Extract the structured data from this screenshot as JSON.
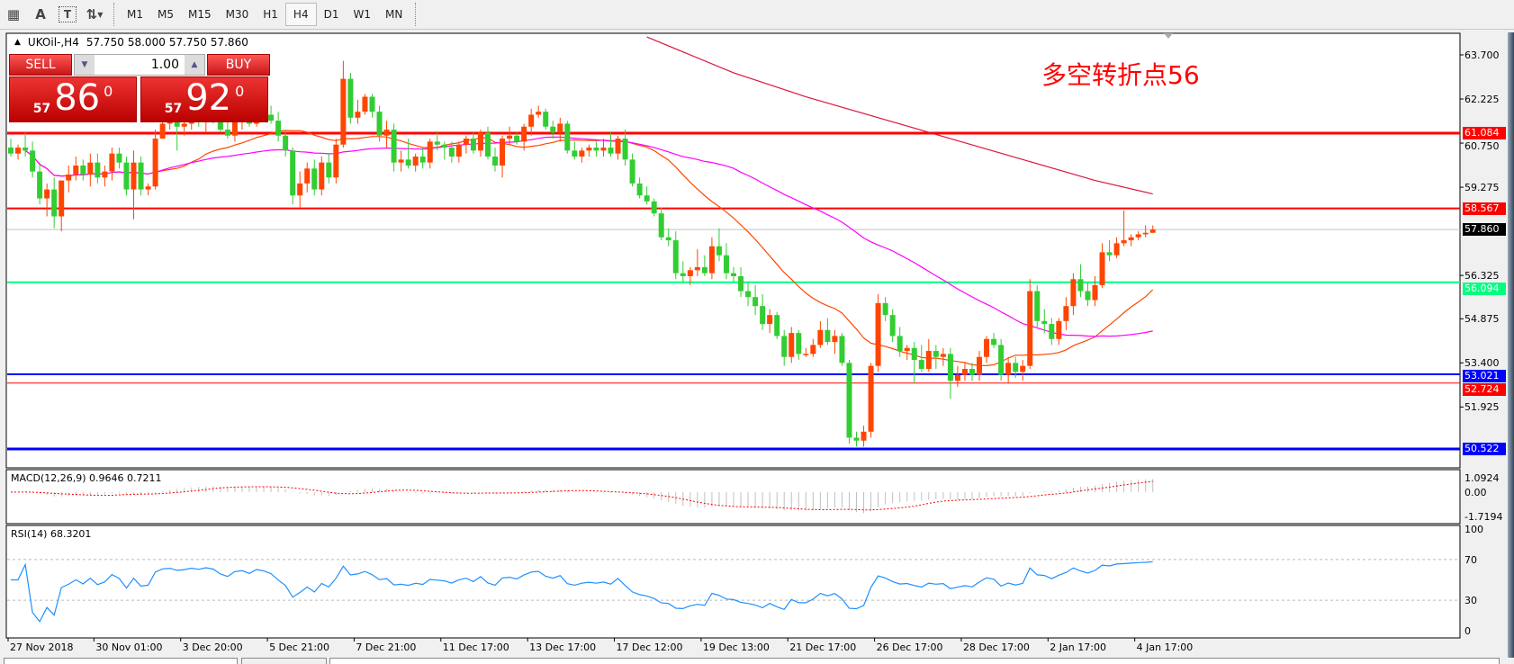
{
  "toolbar": {
    "icons": [
      "grid-periods-icon",
      "text-icon",
      "text-label-icon",
      "arrows-icon"
    ],
    "icon_glyphs": [
      "▦",
      "A",
      "T",
      "⇅"
    ],
    "timeframes": [
      "M1",
      "M5",
      "M15",
      "M30",
      "H1",
      "H4",
      "D1",
      "W1",
      "MN"
    ],
    "active_timeframe": "H4"
  },
  "chart": {
    "symbol_title": "UKOil-,H4",
    "ohlc": [
      "57.750",
      "58.000",
      "57.750",
      "57.860"
    ],
    "annotation": "多空转折点56",
    "colors": {
      "bull": "#FF4500",
      "bear": "#32CD32",
      "ma_fast": "#FF4500",
      "ma_mid": "#FF00FF",
      "ma_slow": "#DC143C",
      "macd_hist": "#C0C0C0",
      "macd_signal": "#FF0000",
      "rsi": "#1E90FF"
    },
    "price_ticks": [
      "63.700",
      "62.225",
      "60.750",
      "59.275",
      "56.325",
      "54.875",
      "53.400",
      "51.925"
    ],
    "price_range": [
      50.522,
      63.7
    ],
    "hlines": [
      {
        "value": "61.084",
        "color": "#FF0000",
        "width": 3
      },
      {
        "value": "58.567",
        "color": "#FF0000",
        "width": 2
      },
      {
        "value": "57.860",
        "color": "#C0C0C0",
        "width": 1,
        "label_bg": "#000000"
      },
      {
        "value": "56.094",
        "color": "#00FF7F",
        "width": 2
      },
      {
        "value": "53.021",
        "color": "#0000FF",
        "width": 2
      },
      {
        "value": "52.724",
        "color": "#FF0000",
        "width": 1
      },
      {
        "value": "50.522",
        "color": "#0000FF",
        "width": 3
      }
    ],
    "ma_slow_points": [
      [
        88,
        64.3
      ],
      [
        100,
        63.1
      ],
      [
        110,
        62.3
      ],
      [
        120,
        61.6
      ],
      [
        130,
        60.9
      ],
      [
        140,
        60.2
      ],
      [
        150,
        59.5
      ],
      [
        158,
        59.05
      ]
    ],
    "time_labels": [
      "27 Nov 2018",
      "30 Nov 01:00",
      "3 Dec 20:00",
      "5 Dec 21:00",
      "7 Dec 21:00",
      "11 Dec 17:00",
      "13 Dec 17:00",
      "17 Dec 12:00",
      "19 Dec 13:00",
      "21 Dec 17:00",
      "26 Dec 17:00",
      "28 Dec 17:00",
      "2 Jan 17:00",
      "4 Jan 17:00"
    ]
  },
  "trade_panel": {
    "sell_label": "SELL",
    "buy_label": "BUY",
    "lot": "1.00",
    "sell_small": "57",
    "sell_big": "86",
    "sell_sup": "0",
    "buy_small": "57",
    "buy_big": "92",
    "buy_sup": "0"
  },
  "macd": {
    "label": "MACD(12,26,9) 0.9646 0.7211",
    "ticks": [
      "1.0924",
      "0.00",
      "-1.7194"
    ]
  },
  "rsi": {
    "label": "RSI(14) 68.3201",
    "ticks": [
      "100",
      "70",
      "30",
      "0"
    ],
    "levels": [
      70,
      30
    ]
  },
  "chart_data": {
    "type": "candlestick",
    "candles": [
      [
        60.6,
        60.9,
        60.3,
        60.4
      ],
      [
        60.4,
        60.7,
        60.2,
        60.6
      ],
      [
        60.6,
        61.1,
        60.3,
        60.5
      ],
      [
        60.5,
        60.8,
        59.6,
        59.8
      ],
      [
        59.8,
        60.1,
        58.7,
        58.9
      ],
      [
        58.9,
        59.4,
        58.3,
        59.2
      ],
      [
        59.2,
        59.6,
        57.9,
        58.3
      ],
      [
        58.3,
        59.5,
        57.8,
        59.5
      ],
      [
        59.5,
        60.0,
        59.1,
        59.7
      ],
      [
        59.7,
        60.3,
        59.5,
        60.0
      ],
      [
        60.0,
        60.2,
        59.5,
        59.7
      ],
      [
        59.7,
        60.4,
        59.3,
        60.1
      ],
      [
        60.1,
        60.4,
        59.4,
        59.6
      ],
      [
        59.6,
        60.0,
        59.3,
        59.8
      ],
      [
        59.8,
        60.6,
        59.5,
        60.4
      ],
      [
        60.4,
        60.6,
        59.9,
        60.1
      ],
      [
        60.1,
        60.3,
        59.0,
        59.2
      ],
      [
        59.2,
        60.5,
        58.2,
        60.1
      ],
      [
        60.1,
        60.3,
        59.0,
        59.2
      ],
      [
        59.2,
        59.4,
        59.0,
        59.3
      ],
      [
        59.3,
        61.2,
        59.2,
        60.9
      ],
      [
        60.9,
        61.6,
        60.9,
        61.4
      ],
      [
        61.4,
        61.7,
        61.2,
        61.5
      ],
      [
        61.5,
        61.8,
        60.5,
        61.3
      ],
      [
        61.3,
        61.6,
        61.0,
        61.4
      ],
      [
        61.4,
        61.9,
        61.2,
        61.6
      ],
      [
        61.6,
        62.0,
        61.3,
        61.5
      ],
      [
        61.5,
        61.8,
        61.1,
        61.7
      ],
      [
        61.7,
        62.0,
        61.4,
        61.6
      ],
      [
        61.6,
        61.8,
        61.1,
        61.2
      ],
      [
        61.2,
        61.5,
        60.9,
        61.0
      ],
      [
        61.0,
        61.6,
        60.8,
        61.5
      ],
      [
        61.5,
        61.8,
        61.2,
        61.6
      ],
      [
        61.6,
        61.9,
        61.3,
        61.4
      ],
      [
        61.4,
        62.0,
        61.3,
        61.8
      ],
      [
        61.8,
        62.1,
        61.5,
        61.7
      ],
      [
        61.7,
        62.0,
        61.4,
        61.5
      ],
      [
        61.5,
        61.8,
        60.8,
        61.0
      ],
      [
        61.0,
        61.2,
        60.3,
        60.5
      ],
      [
        60.5,
        60.6,
        58.7,
        59.0
      ],
      [
        59.0,
        59.8,
        58.6,
        59.4
      ],
      [
        59.4,
        60.1,
        59.1,
        59.9
      ],
      [
        59.9,
        60.2,
        59.0,
        59.2
      ],
      [
        59.2,
        60.3,
        59.0,
        60.1
      ],
      [
        60.1,
        60.4,
        59.4,
        59.6
      ],
      [
        59.6,
        60.9,
        59.4,
        60.7
      ],
      [
        60.7,
        63.5,
        60.6,
        62.9
      ],
      [
        62.9,
        63.1,
        61.4,
        61.6
      ],
      [
        61.6,
        62.2,
        61.4,
        61.8
      ],
      [
        61.8,
        62.4,
        61.7,
        62.3
      ],
      [
        62.3,
        62.4,
        61.6,
        61.8
      ],
      [
        61.8,
        62.0,
        60.8,
        61.0
      ],
      [
        61.0,
        61.5,
        60.6,
        61.2
      ],
      [
        61.2,
        61.4,
        59.8,
        60.1
      ],
      [
        60.1,
        60.5,
        59.8,
        60.2
      ],
      [
        60.2,
        60.9,
        59.9,
        60.0
      ],
      [
        60.0,
        60.4,
        59.8,
        60.3
      ],
      [
        60.3,
        60.6,
        59.9,
        60.1
      ],
      [
        60.1,
        60.9,
        59.9,
        60.8
      ],
      [
        60.8,
        61.1,
        60.5,
        60.7
      ],
      [
        60.7,
        60.8,
        60.2,
        60.6
      ],
      [
        60.6,
        60.8,
        60.1,
        60.3
      ],
      [
        60.3,
        60.8,
        60.1,
        60.7
      ],
      [
        60.7,
        61.0,
        60.4,
        60.9
      ],
      [
        60.9,
        61.1,
        60.4,
        60.5
      ],
      [
        60.5,
        61.2,
        60.3,
        61.1
      ],
      [
        61.1,
        61.3,
        60.2,
        60.3
      ],
      [
        60.3,
        60.6,
        59.8,
        60.0
      ],
      [
        60.0,
        61.0,
        59.6,
        60.9
      ],
      [
        60.9,
        61.3,
        60.7,
        61.0
      ],
      [
        61.0,
        61.1,
        60.7,
        60.8
      ],
      [
        60.8,
        61.4,
        60.5,
        61.3
      ],
      [
        61.3,
        61.9,
        61.0,
        61.7
      ],
      [
        61.7,
        62.0,
        61.6,
        61.8
      ],
      [
        61.8,
        61.9,
        61.2,
        61.3
      ],
      [
        61.3,
        61.5,
        60.9,
        61.1
      ],
      [
        61.1,
        61.6,
        60.8,
        61.4
      ],
      [
        61.4,
        61.5,
        60.4,
        60.5
      ],
      [
        60.5,
        60.8,
        60.2,
        60.3
      ],
      [
        60.3,
        60.6,
        60.1,
        60.5
      ],
      [
        60.5,
        60.7,
        60.3,
        60.6
      ],
      [
        60.6,
        60.8,
        60.3,
        60.5
      ],
      [
        60.5,
        60.9,
        60.3,
        60.6
      ],
      [
        60.6,
        61.1,
        60.3,
        60.4
      ],
      [
        60.4,
        61.0,
        60.2,
        60.9
      ],
      [
        60.9,
        61.2,
        60.0,
        60.2
      ],
      [
        60.2,
        60.4,
        59.3,
        59.4
      ],
      [
        59.4,
        59.6,
        58.9,
        59.0
      ],
      [
        59.0,
        59.3,
        58.7,
        58.8
      ],
      [
        58.8,
        58.9,
        58.3,
        58.4
      ],
      [
        58.4,
        58.6,
        57.5,
        57.6
      ],
      [
        57.6,
        57.9,
        57.3,
        57.5
      ],
      [
        57.5,
        57.8,
        56.2,
        56.4
      ],
      [
        56.4,
        56.8,
        56.1,
        56.3
      ],
      [
        56.3,
        56.6,
        56.0,
        56.5
      ],
      [
        56.5,
        57.2,
        56.3,
        56.6
      ],
      [
        56.6,
        57.0,
        56.3,
        56.4
      ],
      [
        56.4,
        57.6,
        56.2,
        57.3
      ],
      [
        57.3,
        57.9,
        56.8,
        57.0
      ],
      [
        57.0,
        57.4,
        56.2,
        56.4
      ],
      [
        56.4,
        56.6,
        56.1,
        56.3
      ],
      [
        56.3,
        56.6,
        55.6,
        55.8
      ],
      [
        55.8,
        56.1,
        55.3,
        55.6
      ],
      [
        55.6,
        56.0,
        55.0,
        55.3
      ],
      [
        55.3,
        55.7,
        54.5,
        54.7
      ],
      [
        54.7,
        55.2,
        54.4,
        55.0
      ],
      [
        55.0,
        55.1,
        54.2,
        54.3
      ],
      [
        54.3,
        54.5,
        53.3,
        53.6
      ],
      [
        53.6,
        54.6,
        53.4,
        54.4
      ],
      [
        54.4,
        54.5,
        53.5,
        53.7
      ],
      [
        53.7,
        53.9,
        53.6,
        53.7
      ],
      [
        53.7,
        54.2,
        53.6,
        54.0
      ],
      [
        54.0,
        54.8,
        53.9,
        54.5
      ],
      [
        54.5,
        54.9,
        54.0,
        54.1
      ],
      [
        54.1,
        54.5,
        53.7,
        54.3
      ],
      [
        54.3,
        54.4,
        53.3,
        53.4
      ],
      [
        53.4,
        53.5,
        50.7,
        50.9
      ],
      [
        50.9,
        51.1,
        50.6,
        50.8
      ],
      [
        50.8,
        51.3,
        50.6,
        51.1
      ],
      [
        51.1,
        53.4,
        50.9,
        53.3
      ],
      [
        53.3,
        55.7,
        53.1,
        55.4
      ],
      [
        55.4,
        55.6,
        54.8,
        55.0
      ],
      [
        55.0,
        55.2,
        54.1,
        54.3
      ],
      [
        54.3,
        54.6,
        53.6,
        53.8
      ],
      [
        53.8,
        54.0,
        53.5,
        53.9
      ],
      [
        53.9,
        54.1,
        52.7,
        53.5
      ],
      [
        53.5,
        54.0,
        53.1,
        53.2
      ],
      [
        53.2,
        54.2,
        53.1,
        53.8
      ],
      [
        53.8,
        54.0,
        53.2,
        53.6
      ],
      [
        53.6,
        53.9,
        53.3,
        53.7
      ],
      [
        53.7,
        53.9,
        52.2,
        52.8
      ],
      [
        52.8,
        53.3,
        52.6,
        53.0
      ],
      [
        53.0,
        53.4,
        52.8,
        53.2
      ],
      [
        53.2,
        53.4,
        52.8,
        53.0
      ],
      [
        53.0,
        53.8,
        52.8,
        53.6
      ],
      [
        53.6,
        54.3,
        53.4,
        54.2
      ],
      [
        54.2,
        54.4,
        53.9,
        54.0
      ],
      [
        54.0,
        54.2,
        52.8,
        53.0
      ],
      [
        53.0,
        53.6,
        52.7,
        53.4
      ],
      [
        53.4,
        53.6,
        52.9,
        53.1
      ],
      [
        53.1,
        53.5,
        52.8,
        53.3
      ],
      [
        53.3,
        56.2,
        53.2,
        55.8
      ],
      [
        55.8,
        56.0,
        54.6,
        54.8
      ],
      [
        54.8,
        55.2,
        54.4,
        54.7
      ],
      [
        54.7,
        54.9,
        54.0,
        54.2
      ],
      [
        54.2,
        54.9,
        54.0,
        54.8
      ],
      [
        54.8,
        55.6,
        54.5,
        55.3
      ],
      [
        55.3,
        56.4,
        55.0,
        56.2
      ],
      [
        56.2,
        56.7,
        55.6,
        55.8
      ],
      [
        55.8,
        56.1,
        55.3,
        55.5
      ],
      [
        55.5,
        56.3,
        55.3,
        56.0
      ],
      [
        56.0,
        57.4,
        55.9,
        57.1
      ],
      [
        57.1,
        57.5,
        56.8,
        57.0
      ],
      [
        57.0,
        57.6,
        56.9,
        57.4
      ],
      [
        57.4,
        58.5,
        57.3,
        57.5
      ],
      [
        57.5,
        57.7,
        57.3,
        57.6
      ],
      [
        57.6,
        57.8,
        57.5,
        57.7
      ],
      [
        57.7,
        58.0,
        57.6,
        57.75
      ],
      [
        57.75,
        58.0,
        57.75,
        57.86
      ]
    ]
  }
}
